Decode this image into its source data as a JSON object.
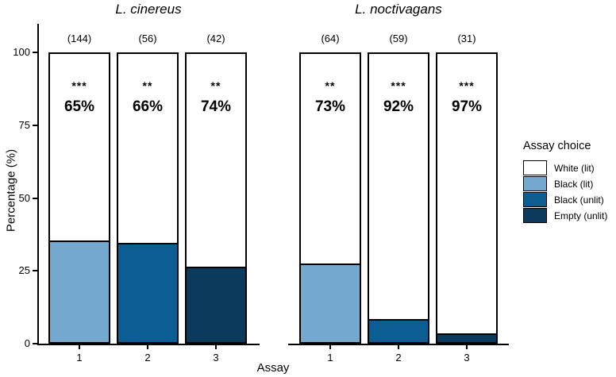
{
  "chart_data": {
    "type": "bar",
    "subtype": "stacked-percentage",
    "xlabel": "Assay",
    "ylabel": "Percentage (%)",
    "ylim": [
      0,
      100
    ],
    "yticks": [
      0,
      25,
      50,
      75,
      100
    ],
    "ytick_labels": [
      "0",
      "25",
      "50",
      "75",
      "100"
    ],
    "grid": "off",
    "legend_position": "right",
    "legend_title": "Assay choice",
    "legend_items": [
      {
        "label": "White (lit)",
        "color": "#ffffff"
      },
      {
        "label": "Black (lit)",
        "color": "#74a8ce"
      },
      {
        "label": "Black (unlit)",
        "color": "#0b5d94"
      },
      {
        "label": "Empty (unlit)",
        "color": "#0b3a5c"
      }
    ],
    "panels": [
      {
        "title": "L. cinereus",
        "bars": [
          {
            "assay": "1",
            "n": "(144)",
            "sig": "***",
            "white_pct_label": "65%",
            "white_value": 65,
            "bottom_segment": "Black (lit)",
            "bottom_value": 35
          },
          {
            "assay": "2",
            "n": "(56)",
            "sig": "**",
            "white_pct_label": "66%",
            "white_value": 66,
            "bottom_segment": "Black (unlit)",
            "bottom_value": 34
          },
          {
            "assay": "3",
            "n": "(42)",
            "sig": "**",
            "white_pct_label": "74%",
            "white_value": 74,
            "bottom_segment": "Empty (unlit)",
            "bottom_value": 26
          }
        ]
      },
      {
        "title": "L. noctivagans",
        "bars": [
          {
            "assay": "1",
            "n": "(64)",
            "sig": "**",
            "white_pct_label": "73%",
            "white_value": 73,
            "bottom_segment": "Black (lit)",
            "bottom_value": 27
          },
          {
            "assay": "2",
            "n": "(59)",
            "sig": "***",
            "white_pct_label": "92%",
            "white_value": 92,
            "bottom_segment": "Black (unlit)",
            "bottom_value": 8
          },
          {
            "assay": "3",
            "n": "(31)",
            "sig": "***",
            "white_pct_label": "97%",
            "white_value": 97,
            "bottom_segment": "Empty (unlit)",
            "bottom_value": 3
          }
        ]
      }
    ]
  }
}
